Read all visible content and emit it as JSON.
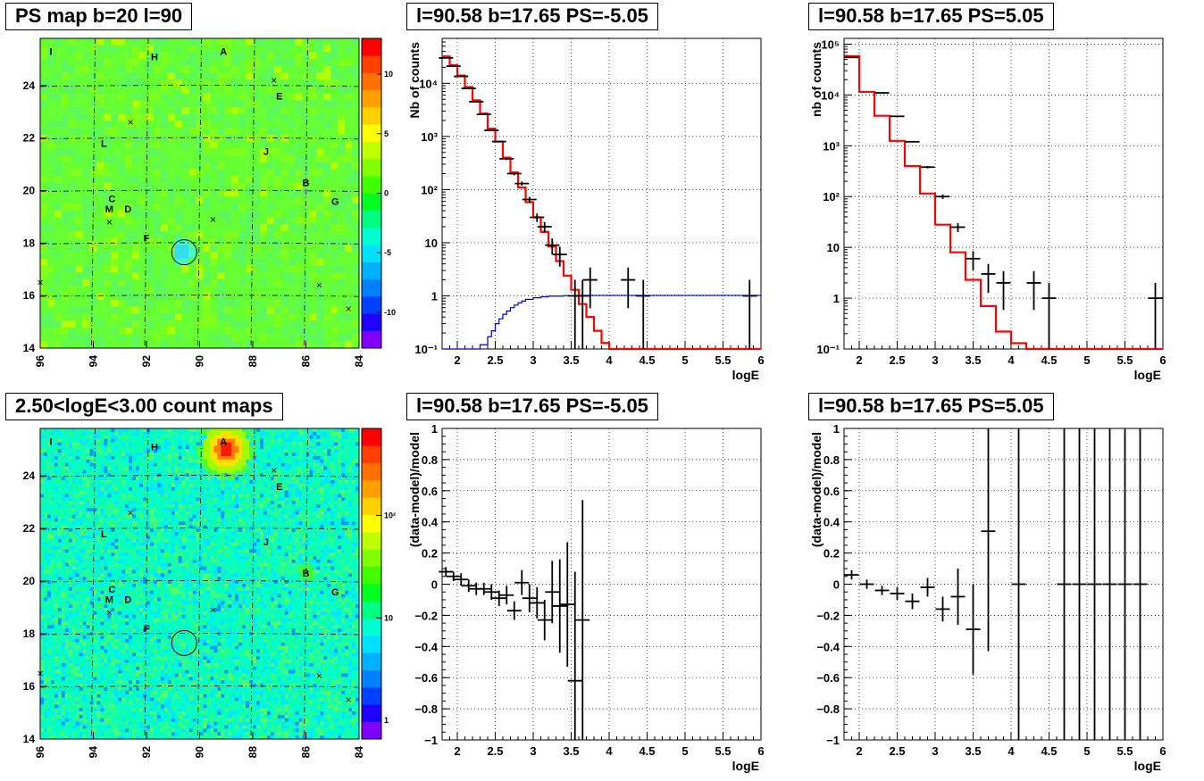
{
  "panels": {
    "ps_map_title": "PS map b=20 l=90",
    "count_map_title": "2.50<logE<3.00 count maps",
    "spec_neg_title": "l=90.58 b=17.65 PS=-5.05",
    "spec_pos_title": "l=90.58 b=17.65 PS=5.05",
    "res_neg_title": "l=90.58 b=17.65 PS=-5.05",
    "res_pos_title": "l=90.58 b=17.65 PS=5.05"
  },
  "colors": {
    "data": "#000000",
    "model": "#ff0000",
    "signal": "#0000cc",
    "grid": "#000000"
  },
  "chart_data": [
    {
      "id": "ps_map",
      "type": "heatmap",
      "title": "PS map b=20 l=90",
      "x_ticks": [
        "96",
        "94",
        "92",
        "90",
        "88",
        "86",
        "84"
      ],
      "y_ticks": [
        "14",
        "16",
        "18",
        "20",
        "22",
        "24"
      ],
      "xlim": [
        96,
        84
      ],
      "ylim": [
        14,
        25.8
      ],
      "colorbar_ticks": [
        "10",
        "5",
        "0",
        "-5",
        "-10"
      ],
      "colorbar_range": [
        -13,
        13
      ],
      "colorbar_colors": [
        "#7f00ff",
        "#2000ff",
        "#0040ff",
        "#0080ff",
        "#00b0ff",
        "#00e0ff",
        "#00ffd0",
        "#00ff80",
        "#00ff20",
        "#40ff00",
        "#80ff00",
        "#c0ff00",
        "#ffff00",
        "#ffd000",
        "#ffa000",
        "#ff7000",
        "#ff4000",
        "#ff0000"
      ],
      "sources": [
        {
          "label": "I",
          "l": 95.6,
          "b": 25.3
        },
        {
          "label": "H",
          "l": 91.7,
          "b": 25.1
        },
        {
          "label": "A",
          "l": 89.1,
          "b": 25.3
        },
        {
          "label": "E",
          "l": 87.0,
          "b": 23.6
        },
        {
          "label": "L",
          "l": 93.6,
          "b": 21.8
        },
        {
          "label": "J",
          "l": 87.5,
          "b": 21.5
        },
        {
          "label": "B",
          "l": 86.0,
          "b": 20.3
        },
        {
          "label": "G",
          "l": 84.9,
          "b": 19.6
        },
        {
          "label": "C",
          "l": 93.3,
          "b": 19.7
        },
        {
          "label": "M",
          "l": 93.4,
          "b": 19.3
        },
        {
          "label": "D",
          "l": 92.7,
          "b": 19.3
        },
        {
          "label": "F",
          "l": 92.0,
          "b": 18.2
        }
      ],
      "crosses": [
        [
          87.2,
          24.2
        ],
        [
          92.6,
          22.6
        ],
        [
          89.5,
          18.9
        ],
        [
          93.4,
          18.8
        ],
        [
          96.0,
          16.5
        ],
        [
          85.5,
          16.4
        ],
        [
          84.4,
          15.5
        ]
      ],
      "circle": {
        "l": 90.58,
        "b": 17.65
      }
    },
    {
      "id": "count_map",
      "type": "heatmap",
      "title": "2.50<logE<3.00 count maps",
      "x_ticks": [
        "96",
        "94",
        "92",
        "90",
        "88",
        "86",
        "84"
      ],
      "y_ticks": [
        "14",
        "16",
        "18",
        "20",
        "22",
        "24"
      ],
      "xlim": [
        96,
        84
      ],
      "ylim": [
        14,
        25.8
      ],
      "colorbar_ticks": [
        "10²",
        "10",
        "1"
      ],
      "colorbar_scale": "log",
      "colorbar_colors": [
        "#7f00ff",
        "#2000ff",
        "#0040ff",
        "#0080ff",
        "#00b0ff",
        "#00e0ff",
        "#00ffd0",
        "#00ff80",
        "#00ff20",
        "#40ff00",
        "#80ff00",
        "#c0ff00",
        "#ffff00",
        "#ffd000",
        "#ffa000",
        "#ff7000",
        "#ff4000",
        "#ff0000"
      ],
      "sources": [
        {
          "label": "I",
          "l": 95.6,
          "b": 25.3
        },
        {
          "label": "H",
          "l": 91.7,
          "b": 25.1
        },
        {
          "label": "A",
          "l": 89.1,
          "b": 25.3
        },
        {
          "label": "E",
          "l": 87.0,
          "b": 23.6
        },
        {
          "label": "L",
          "l": 93.6,
          "b": 21.8
        },
        {
          "label": "J",
          "l": 87.5,
          "b": 21.5
        },
        {
          "label": "B",
          "l": 86.0,
          "b": 20.3
        },
        {
          "label": "G",
          "l": 84.9,
          "b": 19.6
        },
        {
          "label": "C",
          "l": 93.3,
          "b": 19.7
        },
        {
          "label": "M",
          "l": 93.4,
          "b": 19.3
        },
        {
          "label": "D",
          "l": 92.7,
          "b": 19.3
        },
        {
          "label": "F",
          "l": 92.0,
          "b": 18.2
        }
      ],
      "crosses": [
        [
          87.2,
          24.2
        ],
        [
          92.6,
          22.6
        ],
        [
          89.5,
          18.9
        ],
        [
          93.4,
          18.8
        ],
        [
          96.0,
          16.5
        ],
        [
          85.5,
          16.4
        ],
        [
          84.4,
          15.5
        ]
      ],
      "circle": {
        "l": 90.58,
        "b": 17.65
      },
      "bright_source": {
        "l": 89.0,
        "b": 25.0
      }
    },
    {
      "id": "spec_neg",
      "type": "line",
      "title": "l=90.58 b=17.65 PS=-5.05",
      "xlabel": "logE",
      "ylabel": "Nb of counts",
      "xlim": [
        1.8,
        6.0
      ],
      "ylim": [
        0.1,
        70000
      ],
      "yscale": "log",
      "x_ticks": [
        "2",
        "2.5",
        "3",
        "3.5",
        "4",
        "4.5",
        "5",
        "5.5",
        "6"
      ],
      "y_ticks": [
        "10⁻¹",
        "1",
        "10",
        "10²",
        "10³",
        "10⁴"
      ],
      "data": [
        {
          "x": 1.85,
          "y": 30000
        },
        {
          "x": 1.95,
          "y": 21000
        },
        {
          "x": 2.05,
          "y": 13500
        },
        {
          "x": 2.15,
          "y": 8000
        },
        {
          "x": 2.25,
          "y": 4500
        },
        {
          "x": 2.35,
          "y": 2600
        },
        {
          "x": 2.45,
          "y": 1300
        },
        {
          "x": 2.55,
          "y": 800
        },
        {
          "x": 2.65,
          "y": 380
        },
        {
          "x": 2.75,
          "y": 200
        },
        {
          "x": 2.85,
          "y": 130
        },
        {
          "x": 2.95,
          "y": 65
        },
        {
          "x": 3.05,
          "y": 30
        },
        {
          "x": 3.15,
          "y": 20
        },
        {
          "x": 3.25,
          "y": 9
        },
        {
          "x": 3.35,
          "y": 6
        },
        {
          "x": 3.55,
          "y": 1
        },
        {
          "x": 3.65,
          "y": 1
        },
        {
          "x": 3.75,
          "y": 2
        },
        {
          "x": 4.25,
          "y": 2
        },
        {
          "x": 4.45,
          "y": 1
        },
        {
          "x": 5.85,
          "y": 1
        }
      ],
      "model_edges": [
        1.8,
        1.9,
        2.0,
        2.1,
        2.2,
        2.3,
        2.4,
        2.5,
        2.6,
        2.7,
        2.8,
        2.9,
        3.0,
        3.1,
        3.2,
        3.3,
        3.4,
        3.5,
        3.6,
        3.7,
        3.8,
        3.9,
        4.0,
        4.1,
        6.0
      ],
      "model": [
        32000,
        22000,
        14000,
        8500,
        4800,
        2700,
        1400,
        800,
        400,
        210,
        110,
        58,
        30,
        16,
        8.5,
        4.5,
        2.4,
        1.3,
        0.7,
        0.4,
        0.22,
        0.13,
        0.1,
        0.1
      ],
      "signal_edges": [
        1.8,
        2.3,
        2.4,
        2.45,
        2.5,
        2.55,
        2.6,
        2.65,
        2.7,
        2.75,
        2.8,
        2.85,
        2.9,
        3.0,
        3.1,
        3.2,
        3.4,
        3.6,
        6.0
      ],
      "signal": [
        0.1,
        0.12,
        0.17,
        0.22,
        0.3,
        0.37,
        0.45,
        0.52,
        0.6,
        0.67,
        0.74,
        0.8,
        0.86,
        0.92,
        0.96,
        0.99,
        1.01,
        1.02
      ]
    },
    {
      "id": "spec_pos",
      "type": "line",
      "title": "l=90.58 b=17.65 PS=5.05",
      "xlabel": "logE",
      "ylabel": "nb of counts",
      "xlim": [
        1.8,
        6.0
      ],
      "ylim": [
        0.1,
        130000
      ],
      "yscale": "log",
      "x_ticks": [
        "2",
        "2.5",
        "3",
        "3.5",
        "4",
        "4.5",
        "5",
        "5.5",
        "6"
      ],
      "y_ticks": [
        "10⁻¹",
        "1",
        "10",
        "10²",
        "10³",
        "10⁴",
        "10⁵"
      ],
      "data": [
        {
          "x": 1.9,
          "y": 55000
        },
        {
          "x": 2.3,
          "y": 11000
        },
        {
          "x": 2.5,
          "y": 3800
        },
        {
          "x": 2.7,
          "y": 1200
        },
        {
          "x": 2.9,
          "y": 380
        },
        {
          "x": 3.1,
          "y": 100
        },
        {
          "x": 3.3,
          "y": 25
        },
        {
          "x": 3.5,
          "y": 6
        },
        {
          "x": 3.7,
          "y": 3
        },
        {
          "x": 3.9,
          "y": 2
        },
        {
          "x": 4.3,
          "y": 2
        },
        {
          "x": 4.5,
          "y": 1
        },
        {
          "x": 5.9,
          "y": 1
        }
      ],
      "model_edges": [
        1.8,
        2.0,
        2.2,
        2.4,
        2.6,
        2.8,
        3.0,
        3.2,
        3.4,
        3.6,
        3.8,
        4.0,
        4.2,
        6.0
      ],
      "model": [
        58000,
        11500,
        3900,
        1250,
        400,
        115,
        28,
        8,
        2.3,
        0.7,
        0.22,
        0.13,
        0.1
      ]
    },
    {
      "id": "res_neg",
      "type": "scatter",
      "title": "l=90.58 b=17.65 PS=-5.05",
      "xlabel": "logE",
      "ylabel": "(data-model)/model",
      "xlim": [
        1.8,
        6.0
      ],
      "ylim": [
        -1,
        1
      ],
      "x_ticks": [
        "2",
        "2.5",
        "3",
        "3.5",
        "4",
        "4.5",
        "5",
        "5.5",
        "6"
      ],
      "y_ticks": [
        "−1",
        "−0.8",
        "−0.6",
        "−0.4",
        "−0.2",
        "0",
        "0.2",
        "0.4",
        "0.6",
        "0.8",
        "1"
      ],
      "data": [
        {
          "x": 1.85,
          "y": 0.08,
          "err": 0.03
        },
        {
          "x": 1.95,
          "y": 0.05,
          "err": 0.03
        },
        {
          "x": 2.05,
          "y": 0.03,
          "err": 0.04
        },
        {
          "x": 2.15,
          "y": -0.01,
          "err": 0.04
        },
        {
          "x": 2.25,
          "y": -0.03,
          "err": 0.04
        },
        {
          "x": 2.35,
          "y": -0.03,
          "err": 0.04
        },
        {
          "x": 2.45,
          "y": -0.05,
          "err": 0.05
        },
        {
          "x": 2.55,
          "y": -0.09,
          "err": 0.05
        },
        {
          "x": 2.65,
          "y": -0.07,
          "err": 0.06
        },
        {
          "x": 2.75,
          "y": -0.17,
          "err": 0.06
        },
        {
          "x": 2.85,
          "y": 0.01,
          "err": 0.08
        },
        {
          "x": 2.95,
          "y": -0.09,
          "err": 0.09
        },
        {
          "x": 3.05,
          "y": -0.12,
          "err": 0.1
        },
        {
          "x": 3.15,
          "y": -0.23,
          "err": 0.13
        },
        {
          "x": 3.25,
          "y": -0.05,
          "err": 0.2
        },
        {
          "x": 3.35,
          "y": -0.14,
          "err": 0.3
        },
        {
          "x": 3.45,
          "y": -0.13,
          "err": 0.4
        },
        {
          "x": 3.55,
          "y": -0.62,
          "err": 0.7
        },
        {
          "x": 3.65,
          "y": -0.23,
          "err": 0.77
        }
      ]
    },
    {
      "id": "res_pos",
      "type": "scatter",
      "title": "l=90.58 b=17.65 PS=5.05",
      "xlabel": "logE",
      "ylabel": "(data-model)/model",
      "xlim": [
        1.8,
        6.0
      ],
      "ylim": [
        -1,
        1
      ],
      "x_ticks": [
        "2",
        "2.5",
        "3",
        "3.5",
        "4",
        "4.5",
        "5",
        "5.5",
        "6"
      ],
      "y_ticks": [
        "−1",
        "−0.8",
        "−0.6",
        "−0.4",
        "−0.2",
        "0",
        "0.2",
        "0.4",
        "0.6",
        "0.8",
        "1"
      ],
      "data": [
        {
          "x": 1.9,
          "y": 0.06,
          "err": 0.03
        },
        {
          "x": 2.1,
          "y": 0.0,
          "err": 0.03
        },
        {
          "x": 2.3,
          "y": -0.04,
          "err": 0.03
        },
        {
          "x": 2.5,
          "y": -0.06,
          "err": 0.04
        },
        {
          "x": 2.7,
          "y": -0.11,
          "err": 0.05
        },
        {
          "x": 2.9,
          "y": -0.02,
          "err": 0.06
        },
        {
          "x": 3.1,
          "y": -0.16,
          "err": 0.08
        },
        {
          "x": 3.3,
          "y": -0.08,
          "err": 0.18
        },
        {
          "x": 3.5,
          "y": -0.29,
          "err": 0.29
        },
        {
          "x": 3.7,
          "y": 0.34,
          "err": 0.77
        },
        {
          "x": 4.1,
          "y": 0,
          "err": 2
        },
        {
          "x": 4.7,
          "y": 0,
          "err": 2
        },
        {
          "x": 4.9,
          "y": 0,
          "err": 2
        },
        {
          "x": 5.1,
          "y": 0,
          "err": 2
        },
        {
          "x": 5.3,
          "y": 0,
          "err": 2
        },
        {
          "x": 5.5,
          "y": 0,
          "err": 2
        },
        {
          "x": 5.7,
          "y": 0,
          "err": 2
        }
      ]
    }
  ]
}
